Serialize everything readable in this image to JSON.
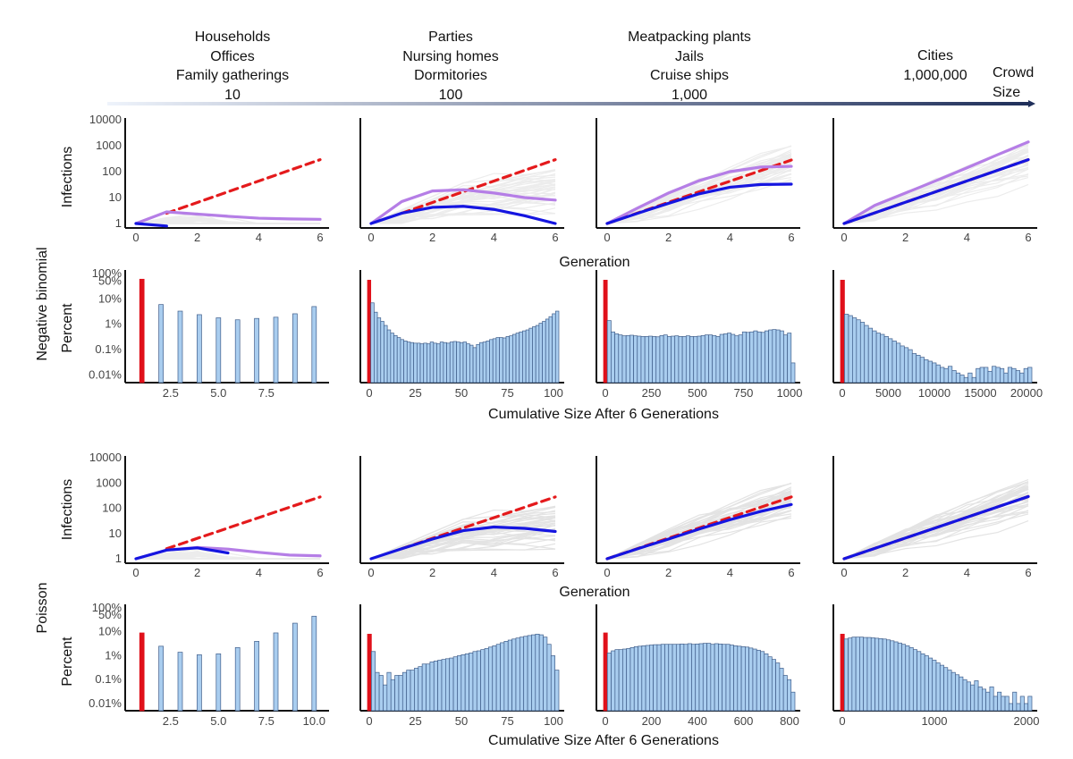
{
  "header": {
    "groups": [
      {
        "lines": [
          "Households",
          "Offices",
          "Family gatherings"
        ],
        "size": "10"
      },
      {
        "lines": [
          "Parties",
          "Nursing homes",
          "Dormitories"
        ],
        "size": "100"
      },
      {
        "lines": [
          "Meatpacking plants",
          "Jails",
          "Cruise ships"
        ],
        "size": "1,000"
      },
      {
        "lines": [
          "Cities"
        ],
        "size": "1,000,000"
      }
    ],
    "crowd_label": [
      "Crowd",
      "Size"
    ]
  },
  "labels": {
    "row_negbin": "Negative binomial",
    "row_poisson": "Poisson",
    "infections": "Infections",
    "percent": "Percent",
    "generation": "Generation",
    "cumulative": "Cumulative Size After 6 Generations"
  },
  "colors": {
    "red_dashed": "#e41a1c",
    "blue": "#1515e0",
    "purple": "#b57ee6",
    "bar_fill": "#a9cdef",
    "bar_edge": "#3f5d8a",
    "first_bar": "#e0101a",
    "arrow_start": "#eef3fb",
    "arrow_end": "#1f2f5a"
  },
  "chart_data": [
    {
      "type": "line",
      "row": "negative-binomial",
      "crowd": "10",
      "xlabel": "Generation",
      "ylabel": "Infections",
      "yscale": "log",
      "xticks": [
        0,
        2,
        4,
        6
      ],
      "yticks": [
        1,
        10,
        100,
        1000,
        10000
      ],
      "series": [
        {
          "color": "red",
          "dashed": true,
          "x": [
            1,
            6
          ],
          "y": [
            2.5,
            290
          ]
        },
        {
          "color": "purple",
          "x": [
            0,
            1,
            2,
            3,
            4,
            5,
            6
          ],
          "y": [
            1,
            2.8,
            2.3,
            1.9,
            1.6,
            1.5,
            1.45
          ]
        },
        {
          "color": "blue",
          "x": [
            0,
            1
          ],
          "y": [
            1,
            0.8
          ]
        }
      ]
    },
    {
      "type": "line",
      "row": "negative-binomial",
      "crowd": "100",
      "xlabel": "Generation",
      "ylabel": "Infections",
      "yscale": "log",
      "xticks": [
        0,
        2,
        4,
        6
      ],
      "yticks": [
        1,
        10,
        100,
        1000,
        10000
      ],
      "series": [
        {
          "color": "red",
          "dashed": true,
          "x": [
            1,
            6
          ],
          "y": [
            2.5,
            290
          ]
        },
        {
          "color": "purple",
          "x": [
            0,
            1,
            2,
            3,
            4,
            5,
            6
          ],
          "y": [
            1,
            7,
            18,
            20,
            15,
            10,
            8
          ]
        },
        {
          "color": "blue",
          "x": [
            0,
            1,
            2,
            3,
            4,
            5,
            6
          ],
          "y": [
            1,
            2.5,
            4.2,
            4.6,
            3.5,
            2,
            1
          ]
        }
      ]
    },
    {
      "type": "line",
      "row": "negative-binomial",
      "crowd": "1,000",
      "xlabel": "Generation",
      "ylabel": "Infections",
      "yscale": "log",
      "xticks": [
        0,
        2,
        4,
        6
      ],
      "yticks": [
        1,
        10,
        100,
        1000,
        10000
      ],
      "series": [
        {
          "color": "red",
          "dashed": true,
          "x": [
            0,
            6
          ],
          "y": [
            1,
            280
          ]
        },
        {
          "color": "purple",
          "x": [
            0,
            1,
            2,
            3,
            4,
            5,
            6
          ],
          "y": [
            1,
            4,
            15,
            45,
            100,
            150,
            160
          ]
        },
        {
          "color": "blue",
          "x": [
            0,
            1,
            2,
            3,
            4,
            5,
            6
          ],
          "y": [
            1,
            2.5,
            6,
            14,
            25,
            32,
            33
          ]
        }
      ]
    },
    {
      "type": "line",
      "row": "negative-binomial",
      "crowd": "1,000,000",
      "xlabel": "Generation",
      "ylabel": "Infections",
      "yscale": "log",
      "xticks": [
        0,
        2,
        4,
        6
      ],
      "yticks": [
        1,
        10,
        100,
        1000,
        10000
      ],
      "series": [
        {
          "color": "red",
          "dashed": true,
          "x": [
            0,
            6
          ],
          "y": [
            1,
            290
          ]
        },
        {
          "color": "purple",
          "x": [
            0,
            1,
            2,
            3,
            4,
            5,
            6
          ],
          "y": [
            1,
            5,
            15,
            45,
            140,
            450,
            1400
          ]
        },
        {
          "color": "blue",
          "x": [
            0,
            6
          ],
          "y": [
            1,
            290
          ]
        }
      ]
    },
    {
      "type": "bar",
      "row": "negative-binomial",
      "crowd": "10",
      "xlabel": "Cumulative Size After 6 Generations",
      "ylabel": "Percent",
      "yscale": "log",
      "yticks": [
        "0.01%",
        "0.1%",
        "1%",
        "10%",
        "50%",
        "100%"
      ],
      "xticks": [
        "2.5",
        "5.0",
        "7.5"
      ],
      "values_percent": [
        60,
        6,
        3.3,
        2.4,
        1.8,
        1.5,
        1.7,
        1.9,
        2.6,
        5
      ]
    },
    {
      "type": "bar",
      "row": "negative-binomial",
      "crowd": "100",
      "xlabel": "Cumulative Size After 6 Generations",
      "ylabel": "Percent",
      "yscale": "log",
      "yticks": [
        "0.01%",
        "0.1%",
        "1%",
        "10%",
        "50%",
        "100%"
      ],
      "xticks": [
        "0",
        "25",
        "50",
        "75",
        "100"
      ],
      "values_percent": [
        55,
        7,
        3,
        1.8,
        1.3,
        0.9,
        0.6,
        0.45,
        0.36,
        0.3,
        0.25,
        0.22,
        0.2,
        0.19,
        0.18,
        0.18,
        0.17,
        0.18,
        0.17,
        0.2,
        0.18,
        0.17,
        0.2,
        0.19,
        0.18,
        0.2,
        0.21,
        0.2,
        0.19,
        0.2,
        0.17,
        0.15,
        0.12,
        0.16,
        0.19,
        0.2,
        0.22,
        0.25,
        0.27,
        0.3,
        0.3,
        0.29,
        0.33,
        0.35,
        0.4,
        0.45,
        0.5,
        0.55,
        0.6,
        0.7,
        0.8,
        0.9,
        1.1,
        1.3,
        1.6,
        2,
        2.6,
        3.3
      ]
    },
    {
      "type": "bar",
      "row": "negative-binomial",
      "crowd": "1,000",
      "xlabel": "Cumulative Size After 6 Generations",
      "ylabel": "Percent",
      "yscale": "log",
      "yticks": [
        "0.01%",
        "0.1%",
        "1%",
        "10%",
        "50%",
        "100%"
      ],
      "xticks": [
        "0",
        "250",
        "500",
        "750",
        "1000"
      ],
      "values_percent": [
        55,
        1.4,
        0.5,
        0.42,
        0.38,
        0.35,
        0.36,
        0.37,
        0.35,
        0.34,
        0.33,
        0.33,
        0.34,
        0.33,
        0.32,
        0.36,
        0.38,
        0.33,
        0.34,
        0.35,
        0.33,
        0.33,
        0.35,
        0.33,
        0.33,
        0.34,
        0.36,
        0.38,
        0.38,
        0.36,
        0.33,
        0.4,
        0.42,
        0.45,
        0.4,
        0.35,
        0.38,
        0.5,
        0.48,
        0.5,
        0.55,
        0.5,
        0.48,
        0.55,
        0.6,
        0.62,
        0.6,
        0.55,
        0.38,
        0.45,
        0.03
      ]
    },
    {
      "type": "bar",
      "row": "negative-binomial",
      "crowd": "1,000,000",
      "xlabel": "Cumulative Size After 6 Generations",
      "ylabel": "Percent",
      "yscale": "log",
      "yticks": [
        "0.01%",
        "0.1%",
        "1%",
        "10%",
        "50%",
        "100%"
      ],
      "xticks": [
        "0",
        "5000",
        "10000",
        "15000",
        "20000"
      ],
      "values_percent": [
        55,
        2.5,
        2.2,
        1.8,
        1.5,
        1.2,
        0.9,
        0.7,
        0.55,
        0.45,
        0.4,
        0.33,
        0.27,
        0.22,
        0.18,
        0.14,
        0.12,
        0.1,
        0.07,
        0.06,
        0.05,
        0.04,
        0.035,
        0.03,
        0.025,
        0.02,
        0.018,
        0.022,
        0.015,
        0.012,
        0.01,
        0.008,
        0.012,
        0.008,
        0.018,
        0.02,
        0.02,
        0.014,
        0.022,
        0.02,
        0.018,
        0.012,
        0.02,
        0.018,
        0.015,
        0.012,
        0.018,
        0.02
      ]
    },
    {
      "type": "line",
      "row": "poisson",
      "crowd": "10",
      "xlabel": "Generation",
      "ylabel": "Infections",
      "yscale": "log",
      "xticks": [
        0,
        2,
        4,
        6
      ],
      "yticks": [
        1,
        10,
        100,
        1000,
        10000
      ],
      "series": [
        {
          "color": "red",
          "dashed": true,
          "x": [
            1,
            6
          ],
          "y": [
            2.5,
            280
          ]
        },
        {
          "color": "purple",
          "x": [
            0,
            1,
            2,
            3,
            4,
            5,
            6
          ],
          "y": [
            1,
            2.2,
            2.8,
            2.4,
            1.8,
            1.4,
            1.3
          ]
        },
        {
          "color": "blue",
          "x": [
            0,
            1,
            2,
            3
          ],
          "y": [
            1,
            2.2,
            2.7,
            1.7
          ]
        }
      ]
    },
    {
      "type": "line",
      "row": "poisson",
      "crowd": "100",
      "xlabel": "Generation",
      "ylabel": "Infections",
      "yscale": "log",
      "xticks": [
        0,
        2,
        4,
        6
      ],
      "yticks": [
        1,
        10,
        100,
        1000,
        10000
      ],
      "series": [
        {
          "color": "red",
          "dashed": true,
          "x": [
            1,
            6
          ],
          "y": [
            2.5,
            280
          ]
        },
        {
          "color": "blue",
          "x": [
            0,
            1,
            2,
            3,
            4,
            5,
            6
          ],
          "y": [
            1,
            2.5,
            6,
            13,
            18,
            16,
            12
          ]
        }
      ]
    },
    {
      "type": "line",
      "row": "poisson",
      "crowd": "1,000",
      "xlabel": "Generation",
      "ylabel": "Infections",
      "yscale": "log",
      "xticks": [
        0,
        2,
        4,
        6
      ],
      "yticks": [
        1,
        10,
        100,
        1000,
        10000
      ],
      "series": [
        {
          "color": "red",
          "dashed": true,
          "x": [
            0,
            6
          ],
          "y": [
            1,
            280
          ]
        },
        {
          "color": "blue",
          "x": [
            0,
            1,
            2,
            3,
            4,
            5,
            6
          ],
          "y": [
            1,
            2.5,
            6,
            15,
            35,
            75,
            140
          ]
        }
      ]
    },
    {
      "type": "line",
      "row": "poisson",
      "crowd": "1,000,000",
      "xlabel": "Generation",
      "ylabel": "Infections",
      "yscale": "log",
      "xticks": [
        0,
        2,
        4,
        6
      ],
      "yticks": [
        1,
        10,
        100,
        1000,
        10000
      ],
      "series": [
        {
          "color": "red",
          "dashed": true,
          "x": [
            0,
            6
          ],
          "y": [
            1,
            290
          ]
        },
        {
          "color": "blue",
          "x": [
            0,
            6
          ],
          "y": [
            1,
            290
          ]
        }
      ]
    },
    {
      "type": "bar",
      "row": "poisson",
      "crowd": "10",
      "xlabel": "Cumulative Size After 6 Generations",
      "ylabel": "Percent",
      "yscale": "log",
      "yticks": [
        "0.01%",
        "0.1%",
        "1%",
        "10%",
        "50%",
        "100%"
      ],
      "xticks": [
        "2.5",
        "5.0",
        "7.5",
        "10.0"
      ],
      "values_percent": [
        9,
        2.5,
        1.4,
        1.1,
        1.2,
        2.2,
        4,
        9,
        23,
        45
      ]
    },
    {
      "type": "bar",
      "row": "poisson",
      "crowd": "100",
      "xlabel": "Cumulative Size After 6 Generations",
      "ylabel": "Percent",
      "yscale": "log",
      "yticks": [
        "0.01%",
        "0.1%",
        "1%",
        "10%",
        "50%",
        "100%"
      ],
      "xticks": [
        "0",
        "25",
        "50",
        "75",
        "100"
      ],
      "values_percent": [
        8,
        1.5,
        0.2,
        0.15,
        0.06,
        0.2,
        0.1,
        0.15,
        0.15,
        0.2,
        0.25,
        0.25,
        0.3,
        0.35,
        0.45,
        0.45,
        0.55,
        0.6,
        0.65,
        0.7,
        0.75,
        0.8,
        0.9,
        1,
        1.1,
        1.2,
        1.3,
        1.5,
        1.6,
        1.8,
        2,
        2.3,
        2.6,
        3,
        3.5,
        4,
        4.5,
        5,
        5.5,
        6,
        6.5,
        7,
        7.5,
        8,
        7.5,
        6,
        3,
        1,
        0.25
      ]
    },
    {
      "type": "bar",
      "row": "poisson",
      "crowd": "1,000",
      "xlabel": "Cumulative Size After 6 Generations",
      "ylabel": "Percent",
      "yscale": "log",
      "yticks": [
        "0.01%",
        "0.1%",
        "1%",
        "10%",
        "50%",
        "100%"
      ],
      "xticks": [
        "0",
        "200",
        "400",
        "600",
        "800"
      ],
      "values_percent": [
        9,
        1.3,
        1.6,
        1.8,
        1.8,
        1.9,
        2,
        2.2,
        2.4,
        2.5,
        2.6,
        2.7,
        2.8,
        2.9,
        2.9,
        3,
        3,
        3,
        3,
        3,
        3.1,
        3,
        3.2,
        3,
        3.1,
        3.2,
        3.3,
        3.3,
        3,
        3.2,
        3.1,
        3,
        3,
        2.8,
        2.6,
        2.5,
        2.4,
        2.3,
        2.1,
        1.9,
        1.7,
        1.5,
        1.2,
        0.9,
        0.7,
        0.5,
        0.3,
        0.15,
        0.1,
        0.03
      ]
    },
    {
      "type": "bar",
      "row": "poisson",
      "crowd": "1,000,000",
      "xlabel": "Cumulative Size After 6 Generations",
      "ylabel": "Percent",
      "yscale": "log",
      "yticks": [
        "0.01%",
        "0.1%",
        "1%",
        "10%",
        "50%",
        "100%"
      ],
      "xticks": [
        "0",
        "1000",
        "2000"
      ],
      "values_percent": [
        8,
        5,
        5.5,
        6,
        6,
        6,
        5.8,
        5.8,
        5.6,
        5.4,
        5.2,
        5,
        4.6,
        4.2,
        3.8,
        3.4,
        3,
        2.6,
        2.2,
        1.8,
        1.5,
        1.2,
        1,
        0.8,
        0.65,
        0.5,
        0.4,
        0.32,
        0.25,
        0.2,
        0.16,
        0.13,
        0.1,
        0.08,
        0.06,
        0.09,
        0.05,
        0.04,
        0.03,
        0.05,
        0.02,
        0.03,
        0.02,
        0.02,
        0.01,
        0.03,
        0.01,
        0.02,
        0.01,
        0.02
      ]
    }
  ]
}
